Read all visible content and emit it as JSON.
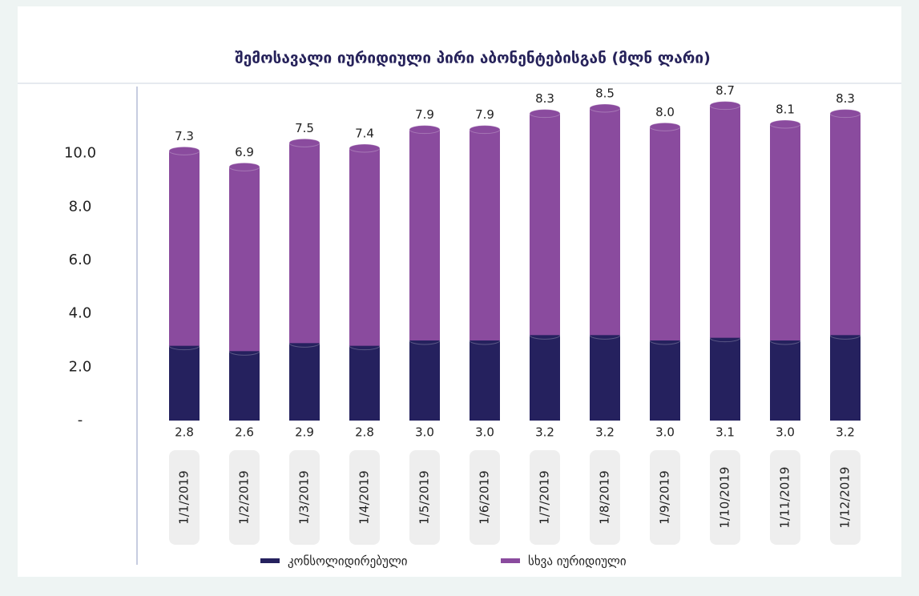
{
  "chart_data": {
    "type": "bar",
    "stacked": true,
    "title": "შემოსავალი იურიდიული პირი აბონენტებისგან (მლნ ლარი)",
    "categories": [
      "1/1/2019",
      "1/2/2019",
      "1/3/2019",
      "1/4/2019",
      "1/5/2019",
      "1/6/2019",
      "1/7/2019",
      "1/8/2019",
      "1/9/2019",
      "1/10/2019",
      "1/11/2019",
      "1/12/2019"
    ],
    "series": [
      {
        "name": "კონსოლიდირებული",
        "color": "#25215e",
        "values": [
          2.8,
          2.6,
          2.9,
          2.8,
          3.0,
          3.0,
          3.2,
          3.2,
          3.0,
          3.1,
          3.0,
          3.2
        ],
        "value_labels": [
          "2.8",
          "2.6",
          "2.9",
          "2.8",
          "3.0",
          "3.0",
          "3.2",
          "3.2",
          "3.0",
          "3.1",
          "3.0",
          "3.2"
        ]
      },
      {
        "name": "სხვა იურიდიული",
        "color": "#8a4b9e",
        "values": [
          7.3,
          6.9,
          7.5,
          7.4,
          7.9,
          7.9,
          8.3,
          8.5,
          8.0,
          8.7,
          8.1,
          8.3
        ],
        "value_labels": [
          "7.3",
          "6.9",
          "7.5",
          "7.4",
          "7.9",
          "7.9",
          "8.3",
          "8.5",
          "8.0",
          "8.7",
          "8.1",
          "8.3"
        ]
      }
    ],
    "ylim": [
      0,
      12
    ],
    "yticks": [
      {
        "value": 0,
        "label": "-"
      },
      {
        "value": 2,
        "label": "2.0"
      },
      {
        "value": 4,
        "label": "4.0"
      },
      {
        "value": 6,
        "label": "6.0"
      },
      {
        "value": 8,
        "label": "8.0"
      },
      {
        "value": 10,
        "label": "10.0"
      }
    ],
    "grid": false,
    "legend": "bottom"
  }
}
